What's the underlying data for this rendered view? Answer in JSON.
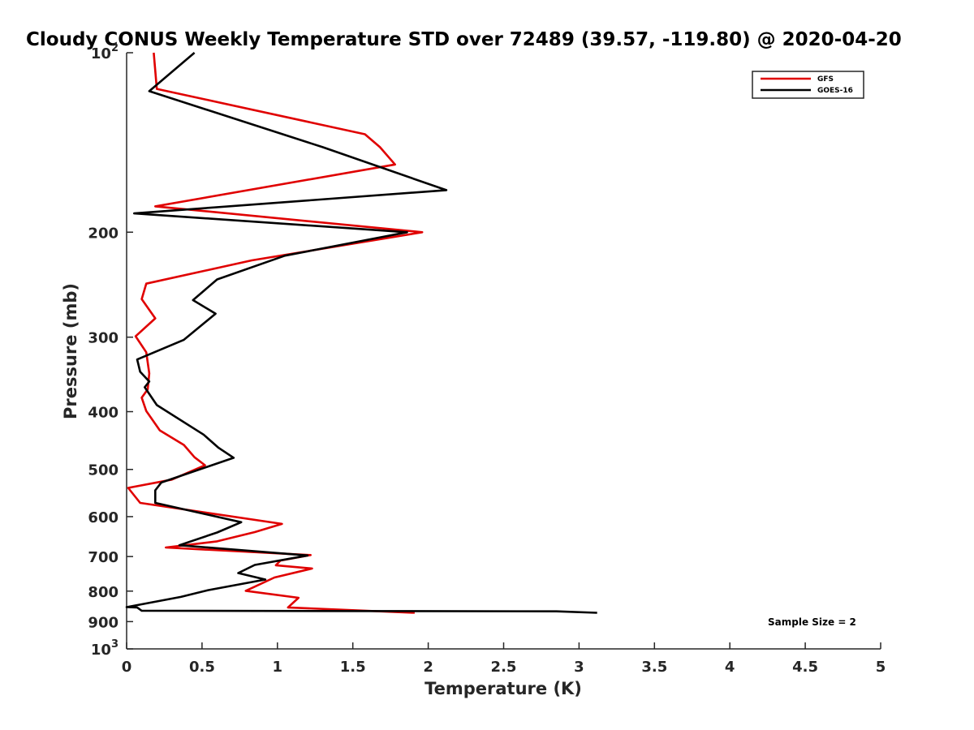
{
  "chart_data": {
    "type": "line",
    "title": "Cloudy CONUS Weekly Temperature STD over 72489 (39.57, -119.80) @ 2020-04-20",
    "xlabel": "Temperature (K)",
    "ylabel": "Pressure (mb)",
    "xlim": [
      0,
      5
    ],
    "ylim": [
      100,
      1000
    ],
    "y_scale": "log",
    "y_reversed": true,
    "grid": false,
    "legend_position": "top-right",
    "x_ticks": [
      {
        "value": 0,
        "label": "0"
      },
      {
        "value": 0.5,
        "label": "0.5"
      },
      {
        "value": 1,
        "label": "1"
      },
      {
        "value": 1.5,
        "label": "1.5"
      },
      {
        "value": 2,
        "label": "2"
      },
      {
        "value": 2.5,
        "label": "2.5"
      },
      {
        "value": 3,
        "label": "3"
      },
      {
        "value": 3.5,
        "label": "3.5"
      },
      {
        "value": 4,
        "label": "4"
      },
      {
        "value": 4.5,
        "label": "4.5"
      },
      {
        "value": 5,
        "label": "5"
      }
    ],
    "y_ticks": [
      {
        "value": 100,
        "base": "10",
        "exp": "2"
      },
      {
        "value": 200,
        "label": "200"
      },
      {
        "value": 300,
        "label": "300"
      },
      {
        "value": 400,
        "label": "400"
      },
      {
        "value": 500,
        "label": "500"
      },
      {
        "value": 600,
        "label": "600"
      },
      {
        "value": 700,
        "label": "700"
      },
      {
        "value": 800,
        "label": "800"
      },
      {
        "value": 900,
        "label": "900"
      },
      {
        "value": 1000,
        "base": "10",
        "exp": "3"
      }
    ],
    "series": [
      {
        "name": "GFS",
        "color": "#e00000",
        "points": [
          [
            0.18,
            100
          ],
          [
            0.2,
            115
          ],
          [
            1.58,
            137
          ],
          [
            1.68,
            144
          ],
          [
            1.78,
            154
          ],
          [
            0.19,
            181
          ],
          [
            1.96,
            200
          ],
          [
            0.83,
            223
          ],
          [
            0.13,
            244
          ],
          [
            0.1,
            259
          ],
          [
            0.19,
            279
          ],
          [
            0.06,
            299
          ],
          [
            0.13,
            318
          ],
          [
            0.15,
            345
          ],
          [
            0.14,
            367
          ],
          [
            0.1,
            379
          ],
          [
            0.13,
            399
          ],
          [
            0.22,
            430
          ],
          [
            0.38,
            455
          ],
          [
            0.45,
            477
          ],
          [
            0.52,
            492
          ],
          [
            0.3,
            520
          ],
          [
            0.01,
            537
          ],
          [
            0.09,
            569
          ],
          [
            1.03,
            617
          ],
          [
            0.85,
            637
          ],
          [
            0.6,
            660
          ],
          [
            0.26,
            676
          ],
          [
            1.22,
            696
          ],
          [
            1.02,
            711
          ],
          [
            0.99,
            724
          ],
          [
            1.23,
            733
          ],
          [
            0.98,
            759
          ],
          [
            0.79,
            799
          ],
          [
            1.14,
            821
          ],
          [
            1.07,
            852
          ],
          [
            1.91,
            870
          ]
        ]
      },
      {
        "name": "GOES-16",
        "color": "#000000",
        "points": [
          [
            0.45,
            100
          ],
          [
            0.15,
            116
          ],
          [
            1.3,
            144
          ],
          [
            2.12,
            170
          ],
          [
            0.05,
            186
          ],
          [
            1.86,
            200
          ],
          [
            1.05,
            219
          ],
          [
            0.6,
            240
          ],
          [
            0.44,
            260
          ],
          [
            0.59,
            274
          ],
          [
            0.38,
            303
          ],
          [
            0.07,
            327
          ],
          [
            0.09,
            343
          ],
          [
            0.15,
            356
          ],
          [
            0.12,
            364
          ],
          [
            0.2,
            390
          ],
          [
            0.51,
            437
          ],
          [
            0.61,
            460
          ],
          [
            0.71,
            478
          ],
          [
            0.23,
            526
          ],
          [
            0.19,
            542
          ],
          [
            0.19,
            569
          ],
          [
            0.76,
            613
          ],
          [
            0.6,
            638
          ],
          [
            0.35,
            670
          ],
          [
            1.2,
            697
          ],
          [
            0.85,
            723
          ],
          [
            0.74,
            746
          ],
          [
            0.92,
            765
          ],
          [
            0.54,
            797
          ],
          [
            0.36,
            818
          ],
          [
            0.0,
            851
          ],
          [
            0.07,
            852
          ],
          [
            0.1,
            863
          ],
          [
            2.85,
            865
          ],
          [
            3.12,
            870
          ]
        ]
      }
    ],
    "annotation": "Sample Size = 2"
  }
}
